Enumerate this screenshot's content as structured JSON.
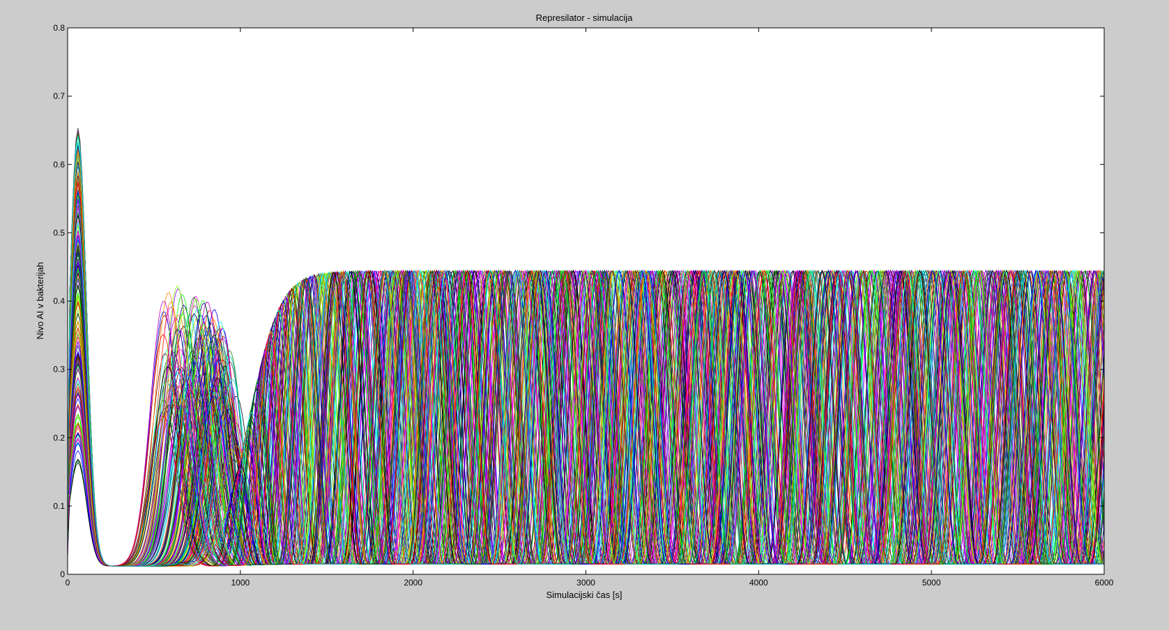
{
  "chart_data": {
    "type": "line",
    "title": "Represilator - simulacija",
    "xlabel": "Simulacijski čas [s]",
    "ylabel": "Nivo AI v bakterijah",
    "xlim": [
      0,
      6000
    ],
    "ylim": [
      0,
      0.8
    ],
    "xticks": [
      0,
      1000,
      2000,
      3000,
      4000,
      5000,
      6000
    ],
    "xtick_labels": [
      "0",
      "1000",
      "2000",
      "3000",
      "4000",
      "5000",
      "6000"
    ],
    "yticks": [
      0,
      0.1,
      0.2,
      0.3,
      0.4,
      0.5,
      0.6,
      0.7,
      0.8
    ],
    "ytick_labels": [
      "0",
      "0.1",
      "0.2",
      "0.3",
      "0.4",
      "0.5",
      "0.6",
      "0.7",
      "0.8"
    ],
    "grid": false,
    "legend": "none",
    "background": "#cccccc",
    "plot_background": "#ffffff",
    "series_colors": [
      "#0000ff",
      "#008000",
      "#ff0000",
      "#00bfbf",
      "#bf00bf",
      "#bfbf00",
      "#404040",
      "#800000",
      "#00ff00",
      "#ff00ff",
      "#000080",
      "#ff8000",
      "#00ffff",
      "#8000ff",
      "#80ff00",
      "#000000"
    ],
    "series_count": 180,
    "sample_series": [
      {
        "x": [
          0,
          70,
          150,
          250,
          400,
          550,
          750,
          900,
          1050,
          1300,
          1500,
          1700,
          1900,
          2150,
          2400,
          2600,
          2850,
          3100,
          3350,
          3600,
          3850,
          4100,
          4350,
          4600,
          4850,
          5100,
          5350,
          5600,
          5850,
          6000
        ],
        "y": [
          0.05,
          0.58,
          0.3,
          0.08,
          0.03,
          0.12,
          0.38,
          0.15,
          0.02,
          0.3,
          0.45,
          0.1,
          0.02,
          0.44,
          0.1,
          0.02,
          0.44,
          0.12,
          0.02,
          0.3,
          0.44,
          0.08,
          0.02,
          0.44,
          0.1,
          0.02,
          0.44,
          0.15,
          0.02,
          0.3
        ]
      }
    ]
  }
}
